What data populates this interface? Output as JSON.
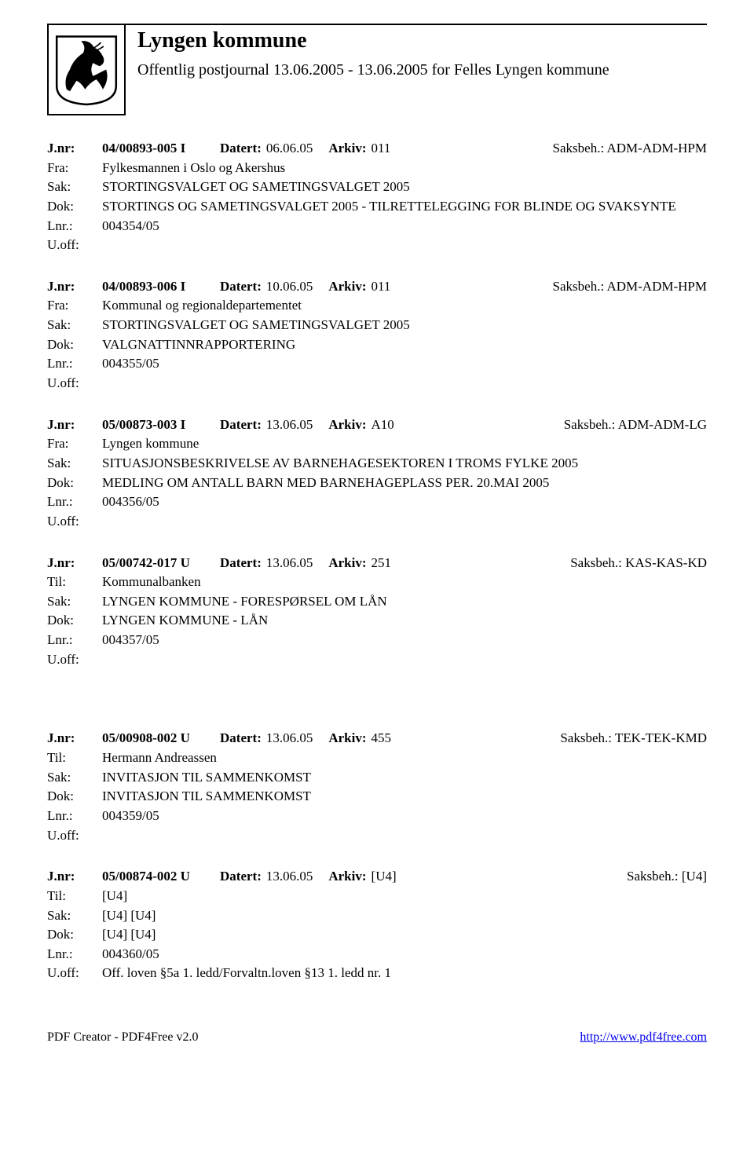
{
  "header": {
    "title": "Lyngen kommune",
    "subtitle": "Offentlig postjournal 13.06.2005 - 13.06.2005 for Felles Lyngen kommune"
  },
  "labels": {
    "jnr": "J.nr:",
    "fra": "Fra:",
    "til": "Til:",
    "sak": "Sak:",
    "dok": "Dok:",
    "lnr": "Lnr.:",
    "uoff": "U.off:",
    "datert": "Datert:",
    "arkiv": "Arkiv:",
    "saksbeh": "Saksbeh.:"
  },
  "entries": [
    {
      "jnr": "04/00893-005 I",
      "datert": "06.06.05",
      "arkiv": "011",
      "saksbeh": "ADM-ADM-HPM",
      "party_label": "Fra:",
      "party": "Fylkesmannen i Oslo og Akershus",
      "sak": "STORTINGSVALGET OG SAMETINGSVALGET 2005",
      "dok": "STORTINGS OG SAMETINGSVALGET 2005 - TILRETTELEGGING FOR BLINDE OG SVAKSYNTE",
      "lnr": "004354/05",
      "uoff": ""
    },
    {
      "jnr": "04/00893-006 I",
      "datert": "10.06.05",
      "arkiv": "011",
      "saksbeh": "ADM-ADM-HPM",
      "party_label": "Fra:",
      "party": "Kommunal og regionaldepartementet",
      "sak": "STORTINGSVALGET OG SAMETINGSVALGET 2005",
      "dok": "VALGNATTINNRAPPORTERING",
      "lnr": "004355/05",
      "uoff": ""
    },
    {
      "jnr": "05/00873-003 I",
      "datert": "13.06.05",
      "arkiv": "A10",
      "saksbeh": "ADM-ADM-LG",
      "party_label": "Fra:",
      "party": "Lyngen kommune",
      "sak": "SITUASJONSBESKRIVELSE AV BARNEHAGESEKTOREN I TROMS FYLKE 2005",
      "dok": "MEDLING OM ANTALL BARN MED BARNEHAGEPLASS PER. 20.MAI 2005",
      "lnr": "004356/05",
      "uoff": ""
    },
    {
      "jnr": "05/00742-017 U",
      "datert": "13.06.05",
      "arkiv": "251",
      "saksbeh": "KAS-KAS-KD",
      "party_label": "Til:",
      "party": "Kommunalbanken",
      "sak": "LYNGEN KOMMUNE  - FORESPØRSEL OM LÅN",
      "dok": "LYNGEN KOMMUNE  - LÅN",
      "lnr": "004357/05",
      "uoff": ""
    },
    {
      "jnr": "05/00908-002 U",
      "datert": "13.06.05",
      "arkiv": "455",
      "saksbeh": "TEK-TEK-KMD",
      "party_label": "Til:",
      "party": "Hermann Andreassen",
      "sak": "INVITASJON TIL SAMMENKOMST",
      "dok": "INVITASJON TIL SAMMENKOMST",
      "lnr": "004359/05",
      "uoff": ""
    },
    {
      "jnr": "05/00874-002 U",
      "datert": "13.06.05",
      "arkiv": "[U4]",
      "saksbeh": "[U4]",
      "party_label": "Til:",
      "party": "[U4]",
      "sak": "[U4] [U4]",
      "dok": "[U4] [U4]",
      "lnr": "004360/05",
      "uoff": "Off. loven §5a 1. ledd/Forvaltn.loven §13 1. ledd nr. 1"
    }
  ],
  "gap_after_index": 3,
  "footer": {
    "left": "PDF Creator - PDF4Free v2.0",
    "right": "http://www.pdf4free.com"
  }
}
